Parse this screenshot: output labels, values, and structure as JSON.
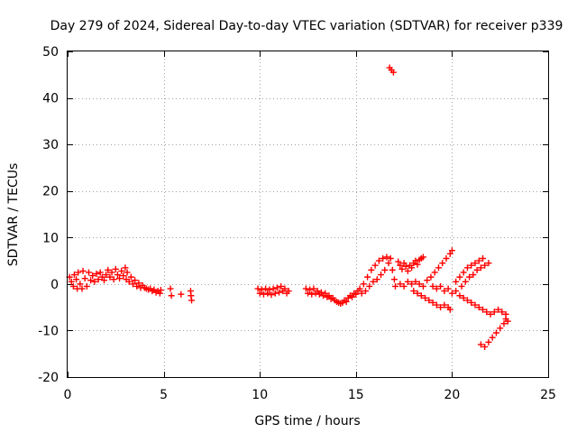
{
  "chart_data": {
    "type": "scatter",
    "title": "Day 279 of 2024, Sidereal Day-to-day VTEC variation (SDTVAR) for receiver p339",
    "xlabel": "GPS time / hours",
    "ylabel": "SDTVAR / TECUs",
    "xlim": [
      0,
      25
    ],
    "ylim": [
      -20,
      50
    ],
    "xticks": [
      0,
      5,
      10,
      15,
      20,
      25
    ],
    "yticks": [
      -20,
      -10,
      0,
      10,
      20,
      30,
      40,
      50
    ],
    "grid": true,
    "marker": "plus",
    "color": "#ff0000",
    "series": [
      {
        "name": "SDTVAR",
        "points": [
          [
            0.1,
            1.5
          ],
          [
            0.2,
            0.5
          ],
          [
            0.3,
            -0.5
          ],
          [
            0.35,
            2.0
          ],
          [
            0.45,
            1.0
          ],
          [
            0.5,
            -1.0
          ],
          [
            0.55,
            2.5
          ],
          [
            0.65,
            0.0
          ],
          [
            0.75,
            -1.0
          ],
          [
            0.8,
            2.8
          ],
          [
            0.9,
            1.2
          ],
          [
            1.0,
            -0.5
          ],
          [
            1.1,
            2.5
          ],
          [
            1.2,
            0.8
          ],
          [
            1.3,
            1.8
          ],
          [
            1.4,
            0.5
          ],
          [
            1.5,
            2.2
          ],
          [
            1.6,
            1.0
          ],
          [
            1.7,
            2.5
          ],
          [
            1.8,
            1.5
          ],
          [
            1.9,
            0.8
          ],
          [
            2.0,
            2.0
          ],
          [
            2.1,
            3.0
          ],
          [
            2.2,
            1.5
          ],
          [
            2.3,
            2.5
          ],
          [
            2.4,
            1.0
          ],
          [
            2.5,
            3.2
          ],
          [
            2.6,
            2.0
          ],
          [
            2.7,
            1.2
          ],
          [
            2.8,
            2.8
          ],
          [
            2.9,
            1.8
          ],
          [
            3.0,
            3.5
          ],
          [
            3.05,
            1.0
          ],
          [
            3.1,
            2.5
          ],
          [
            3.2,
            0.5
          ],
          [
            3.3,
            1.5
          ],
          [
            3.4,
            0.0
          ],
          [
            3.5,
            0.8
          ],
          [
            3.6,
            -0.5
          ],
          [
            3.7,
            0.2
          ],
          [
            3.8,
            -0.8
          ],
          [
            3.9,
            -0.3
          ],
          [
            4.0,
            -0.8
          ],
          [
            4.1,
            -1.0
          ],
          [
            4.2,
            -1.2
          ],
          [
            4.3,
            -1.0
          ],
          [
            4.4,
            -1.5
          ],
          [
            4.5,
            -1.2
          ],
          [
            4.6,
            -1.8
          ],
          [
            4.7,
            -1.5
          ],
          [
            4.8,
            -2.0
          ],
          [
            4.85,
            -1.3
          ],
          [
            5.35,
            -1.0
          ],
          [
            5.4,
            -2.5
          ],
          [
            5.9,
            -2.2
          ],
          [
            6.4,
            -1.5
          ],
          [
            6.42,
            -2.5
          ],
          [
            6.45,
            -3.5
          ],
          [
            9.9,
            -1.0
          ],
          [
            10.0,
            -2.0
          ],
          [
            10.1,
            -1.2
          ],
          [
            10.2,
            -2.2
          ],
          [
            10.3,
            -1.0
          ],
          [
            10.4,
            -2.0
          ],
          [
            10.5,
            -1.2
          ],
          [
            10.6,
            -2.3
          ],
          [
            10.7,
            -1.0
          ],
          [
            10.8,
            -2.0
          ],
          [
            10.9,
            -0.8
          ],
          [
            11.0,
            -1.8
          ],
          [
            11.1,
            -0.5
          ],
          [
            11.2,
            -1.5
          ],
          [
            11.3,
            -1.0
          ],
          [
            11.4,
            -2.0
          ],
          [
            11.5,
            -1.5
          ],
          [
            12.4,
            -1.0
          ],
          [
            12.5,
            -2.0
          ],
          [
            12.6,
            -1.2
          ],
          [
            12.7,
            -2.2
          ],
          [
            12.8,
            -1.0
          ],
          [
            12.9,
            -2.0
          ],
          [
            13.0,
            -1.5
          ],
          [
            13.1,
            -2.2
          ],
          [
            13.2,
            -1.8
          ],
          [
            13.3,
            -2.5
          ],
          [
            13.4,
            -2.0
          ],
          [
            13.5,
            -2.8
          ],
          [
            13.6,
            -2.5
          ],
          [
            13.7,
            -3.2
          ],
          [
            13.8,
            -3.0
          ],
          [
            13.9,
            -3.5
          ],
          [
            14.0,
            -3.8
          ],
          [
            14.1,
            -4.0
          ],
          [
            14.2,
            -4.2
          ],
          [
            14.3,
            -4.0
          ],
          [
            14.4,
            -3.5
          ],
          [
            14.5,
            -3.8
          ],
          [
            14.6,
            -3.0
          ],
          [
            14.7,
            -2.5
          ],
          [
            14.8,
            -2.8
          ],
          [
            14.9,
            -2.0
          ],
          [
            15.0,
            -2.2
          ],
          [
            15.1,
            -1.5
          ],
          [
            15.2,
            -1.0
          ],
          [
            15.3,
            -2.0
          ],
          [
            15.4,
            0.0
          ],
          [
            15.5,
            -1.5
          ],
          [
            15.6,
            1.5
          ],
          [
            15.7,
            -0.5
          ],
          [
            15.8,
            3.0
          ],
          [
            15.9,
            0.5
          ],
          [
            16.0,
            4.0
          ],
          [
            16.1,
            1.0
          ],
          [
            16.2,
            5.0
          ],
          [
            16.3,
            2.0
          ],
          [
            16.4,
            5.5
          ],
          [
            16.5,
            3.0
          ],
          [
            16.6,
            5.8
          ],
          [
            16.7,
            4.5
          ],
          [
            16.8,
            5.5
          ],
          [
            16.9,
            3.0
          ],
          [
            17.0,
            1.0
          ],
          [
            17.05,
            -0.5
          ],
          [
            16.75,
            46.5
          ],
          [
            16.85,
            46.0
          ],
          [
            16.95,
            45.5
          ],
          [
            17.2,
            4.8
          ],
          [
            17.3,
            4.0
          ],
          [
            17.4,
            3.2
          ],
          [
            17.5,
            4.5
          ],
          [
            17.6,
            3.8
          ],
          [
            17.7,
            2.8
          ],
          [
            17.8,
            4.0
          ],
          [
            17.9,
            3.5
          ],
          [
            18.0,
            4.5
          ],
          [
            18.1,
            5.0
          ],
          [
            18.2,
            4.2
          ],
          [
            18.3,
            5.2
          ],
          [
            18.4,
            5.5
          ],
          [
            18.5,
            5.8
          ],
          [
            17.3,
            0.0
          ],
          [
            17.5,
            -0.5
          ],
          [
            17.7,
            0.5
          ],
          [
            17.9,
            0.0
          ],
          [
            18.1,
            0.5
          ],
          [
            18.3,
            0.0
          ],
          [
            18.5,
            -0.5
          ],
          [
            18.7,
            0.8
          ],
          [
            18.9,
            1.5
          ],
          [
            19.1,
            2.5
          ],
          [
            19.3,
            3.5
          ],
          [
            19.5,
            4.5
          ],
          [
            19.7,
            5.5
          ],
          [
            19.9,
            6.5
          ],
          [
            20.0,
            7.2
          ],
          [
            18.0,
            -1.5
          ],
          [
            18.2,
            -2.0
          ],
          [
            18.4,
            -2.5
          ],
          [
            18.6,
            -3.0
          ],
          [
            18.8,
            -3.5
          ],
          [
            19.0,
            -4.0
          ],
          [
            19.2,
            -4.5
          ],
          [
            19.4,
            -5.0
          ],
          [
            19.6,
            -4.5
          ],
          [
            19.8,
            -5.0
          ],
          [
            19.9,
            -5.5
          ],
          [
            19.0,
            -0.5
          ],
          [
            19.2,
            -1.0
          ],
          [
            19.4,
            -0.5
          ],
          [
            19.6,
            -1.5
          ],
          [
            19.8,
            -1.0
          ],
          [
            20.0,
            -2.0
          ],
          [
            20.2,
            -1.5
          ],
          [
            20.4,
            -2.5
          ],
          [
            20.6,
            -3.0
          ],
          [
            20.8,
            -3.5
          ],
          [
            21.0,
            -4.0
          ],
          [
            21.2,
            -4.5
          ],
          [
            21.4,
            -5.0
          ],
          [
            21.6,
            -5.5
          ],
          [
            21.8,
            -6.0
          ],
          [
            22.0,
            -6.5
          ],
          [
            22.2,
            -6.0
          ],
          [
            22.4,
            -5.5
          ],
          [
            22.6,
            -6.0
          ],
          [
            22.8,
            -6.5
          ],
          [
            20.2,
            0.5
          ],
          [
            20.4,
            1.5
          ],
          [
            20.6,
            2.5
          ],
          [
            20.8,
            3.5
          ],
          [
            21.0,
            4.0
          ],
          [
            21.2,
            4.5
          ],
          [
            21.4,
            5.0
          ],
          [
            21.6,
            5.5
          ],
          [
            20.5,
            -0.5
          ],
          [
            20.7,
            0.5
          ],
          [
            20.9,
            1.5
          ],
          [
            21.1,
            2.0
          ],
          [
            21.3,
            3.0
          ],
          [
            21.5,
            3.5
          ],
          [
            21.7,
            4.0
          ],
          [
            21.9,
            4.5
          ],
          [
            21.5,
            -13.0
          ],
          [
            21.7,
            -13.5
          ],
          [
            21.9,
            -12.5
          ],
          [
            22.1,
            -11.5
          ],
          [
            22.3,
            -10.5
          ],
          [
            22.5,
            -9.5
          ],
          [
            22.7,
            -8.5
          ],
          [
            22.8,
            -7.5
          ],
          [
            22.9,
            -8.0
          ]
        ]
      }
    ]
  }
}
